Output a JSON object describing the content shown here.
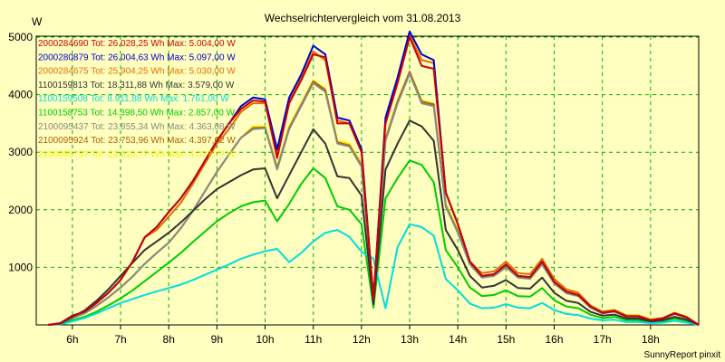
{
  "chart_data": {
    "type": "line",
    "title": "Wechselrichtervergleich vom 31.08.2013",
    "ylabel": "W",
    "ylim": [
      0,
      5000
    ],
    "xlim": [
      5.25,
      19.0
    ],
    "grid": true,
    "legend_position": "top-left",
    "x_ticks": [
      {
        "x": 6,
        "label": "6h"
      },
      {
        "x": 7,
        "label": "7h"
      },
      {
        "x": 8,
        "label": "8h"
      },
      {
        "x": 9,
        "label": "9h"
      },
      {
        "x": 10,
        "label": "10h"
      },
      {
        "x": 11,
        "label": "11h"
      },
      {
        "x": 12,
        "label": "12h"
      },
      {
        "x": 13,
        "label": "13h"
      },
      {
        "x": 14,
        "label": "14h"
      },
      {
        "x": 15,
        "label": "15h"
      },
      {
        "x": 16,
        "label": "16h"
      },
      {
        "x": 17,
        "label": "17h"
      },
      {
        "x": 18,
        "label": "18h"
      }
    ],
    "y_ticks": [
      {
        "y": 1000,
        "label": "1000"
      },
      {
        "y": 2000,
        "label": "2000"
      },
      {
        "y": 3000,
        "label": "3000"
      },
      {
        "y": 4000,
        "label": "4000"
      },
      {
        "y": 5000,
        "label": "5000"
      }
    ],
    "x": [
      5.5,
      5.75,
      6.0,
      6.25,
      6.5,
      6.75,
      7.0,
      7.25,
      7.5,
      7.75,
      8.0,
      8.25,
      8.5,
      8.75,
      9.0,
      9.25,
      9.5,
      9.75,
      10.0,
      10.25,
      10.5,
      10.75,
      11.0,
      11.25,
      11.5,
      11.75,
      12.0,
      12.25,
      12.5,
      12.75,
      13.0,
      13.25,
      13.5,
      13.75,
      14.0,
      14.25,
      14.5,
      14.75,
      15.0,
      15.25,
      15.5,
      15.75,
      16.0,
      16.25,
      16.5,
      16.75,
      17.0,
      17.25,
      17.5,
      17.75,
      18.0,
      18.25,
      18.5,
      18.75,
      19.0
    ],
    "series": [
      {
        "name": "2000284690 Tot: 26.028,25 Wh Max: 5.004,00 W",
        "color": "#cc0000",
        "values": [
          0,
          30,
          160,
          230,
          380,
          560,
          780,
          1100,
          1520,
          1700,
          1960,
          2200,
          2500,
          2850,
          3200,
          3500,
          3750,
          3900,
          3880,
          2900,
          3850,
          4250,
          4700,
          4650,
          3500,
          3500,
          3000,
          450,
          3500,
          4200,
          5000,
          4500,
          4450,
          2300,
          1750,
          1100,
          850,
          880,
          1050,
          850,
          830,
          1100,
          750,
          580,
          520,
          320,
          210,
          240,
          150,
          150,
          80,
          110,
          200,
          130,
          0
        ]
      },
      {
        "name": "2000280879 Tot: 26.004,63 Wh Max: 5.097,00 W",
        "color": "#0000cc",
        "values": [
          0,
          30,
          160,
          230,
          380,
          560,
          780,
          1100,
          1520,
          1700,
          1960,
          2200,
          2500,
          2850,
          3200,
          3500,
          3800,
          3950,
          3920,
          3050,
          3950,
          4350,
          4850,
          4700,
          3600,
          3550,
          3050,
          450,
          3600,
          4300,
          5097,
          4700,
          4600,
          2300,
          1750,
          1100,
          850,
          880,
          1050,
          850,
          830,
          1100,
          750,
          580,
          520,
          320,
          210,
          240,
          150,
          150,
          80,
          110,
          200,
          130,
          0
        ]
      },
      {
        "name": "2000284675 Tot: 25.904,25 Wh Max: 5.030,00 W",
        "color": "#e07000",
        "values": [
          0,
          30,
          160,
          230,
          380,
          560,
          780,
          1100,
          1520,
          1650,
          1880,
          2120,
          2450,
          2800,
          3150,
          3400,
          3700,
          3850,
          3850,
          2950,
          3900,
          4300,
          4750,
          4600,
          3550,
          3500,
          3050,
          450,
          3550,
          4250,
          5030,
          4600,
          4550,
          2300,
          1750,
          1100,
          900,
          930,
          1100,
          900,
          880,
          1150,
          800,
          620,
          560,
          340,
          230,
          260,
          160,
          160,
          90,
          120,
          210,
          140,
          0
        ]
      },
      {
        "name": "1100159813 Tot: 18.311,88 Wh Max: 3.579,00 W",
        "color": "#333333",
        "values": [
          0,
          20,
          140,
          250,
          420,
          620,
          850,
          1080,
          1300,
          1450,
          1600,
          1780,
          1980,
          2180,
          2360,
          2480,
          2600,
          2700,
          2720,
          2200,
          2600,
          3000,
          3400,
          3150,
          2580,
          2550,
          2250,
          360,
          2700,
          3150,
          3550,
          3450,
          3200,
          1650,
          1300,
          850,
          650,
          680,
          780,
          640,
          630,
          820,
          560,
          420,
          380,
          230,
          160,
          180,
          110,
          110,
          60,
          80,
          140,
          90,
          0
        ]
      },
      {
        "name": "1100159508 Tot: 8.911,88 Wh Max: 1.761,00 W",
        "color": "#00dddd",
        "values": [
          0,
          10,
          60,
          120,
          200,
          290,
          380,
          450,
          520,
          580,
          640,
          700,
          780,
          870,
          960,
          1050,
          1150,
          1220,
          1280,
          1320,
          1090,
          1250,
          1450,
          1600,
          1650,
          1530,
          1270,
          1150,
          290,
          1350,
          1750,
          1700,
          1550,
          800,
          600,
          370,
          290,
          300,
          360,
          300,
          290,
          380,
          260,
          190,
          170,
          110,
          80,
          90,
          50,
          50,
          30,
          40,
          70,
          40,
          0
        ]
      },
      {
        "name": "1100158753 Tot: 14.398,50 Wh Max: 2.857,00 W",
        "color": "#00cc00",
        "values": [
          0,
          15,
          80,
          140,
          230,
          340,
          460,
          600,
          760,
          920,
          1080,
          1250,
          1440,
          1620,
          1800,
          1940,
          2060,
          2130,
          2160,
          1800,
          2100,
          2450,
          2720,
          2550,
          2060,
          2000,
          1750,
          300,
          2200,
          2550,
          2857,
          2780,
          2480,
          1300,
          1000,
          650,
          500,
          520,
          600,
          500,
          490,
          640,
          430,
          320,
          290,
          180,
          120,
          140,
          80,
          80,
          50,
          60,
          110,
          70,
          0
        ]
      },
      {
        "name": "2100095437 Tot: 23.855,34 Wh Max: 4.363,08 W",
        "color": "#888888",
        "values": [
          0,
          25,
          120,
          200,
          330,
          480,
          650,
          840,
          1060,
          1250,
          1430,
          1680,
          1980,
          2320,
          2660,
          2960,
          3250,
          3400,
          3420,
          2700,
          3400,
          3800,
          4200,
          4050,
          3150,
          3100,
          2750,
          420,
          3200,
          3850,
          4363,
          3850,
          3800,
          2050,
          1600,
          1050,
          820,
          850,
          1000,
          820,
          800,
          1050,
          720,
          550,
          500,
          300,
          200,
          230,
          140,
          140,
          80,
          100,
          190,
          120,
          0
        ]
      },
      {
        "name": "2100095924 Tot: 23.753,96 Wh Max: 4.397,62 W",
        "color": "#b06000",
        "values": [
          0,
          25,
          120,
          200,
          330,
          480,
          650,
          840,
          1060,
          1250,
          1430,
          1680,
          1980,
          2320,
          2660,
          2960,
          3250,
          3420,
          3430,
          2720,
          3420,
          3820,
          4230,
          4080,
          3170,
          3120,
          2770,
          420,
          3220,
          3880,
          4398,
          3880,
          3830,
          2070,
          1620,
          1060,
          830,
          860,
          1010,
          830,
          810,
          1060,
          730,
          560,
          510,
          310,
          210,
          240,
          150,
          150,
          85,
          105,
          195,
          125,
          0
        ]
      },
      {
        "name": "2100095?3? Tot: 23.910,?? Wh Max: 4.3??,?? W",
        "color": "#ffee00",
        "values": [
          0,
          25,
          120,
          200,
          330,
          480,
          650,
          840,
          1060,
          1250,
          1430,
          1680,
          1980,
          2320,
          2660,
          2960,
          3250,
          3450,
          3450,
          2750,
          3450,
          3850,
          4250,
          4100,
          3200,
          3150,
          2800,
          430,
          3250,
          3900,
          4400,
          3900,
          3850,
          2100,
          1650,
          1080,
          850,
          880,
          1030,
          850,
          830,
          1080,
          750,
          580,
          530,
          330,
          230,
          260,
          170,
          170,
          100,
          120,
          210,
          140,
          0
        ]
      }
    ]
  },
  "footer": {
    "credit": "SunnyReport pinxit"
  }
}
